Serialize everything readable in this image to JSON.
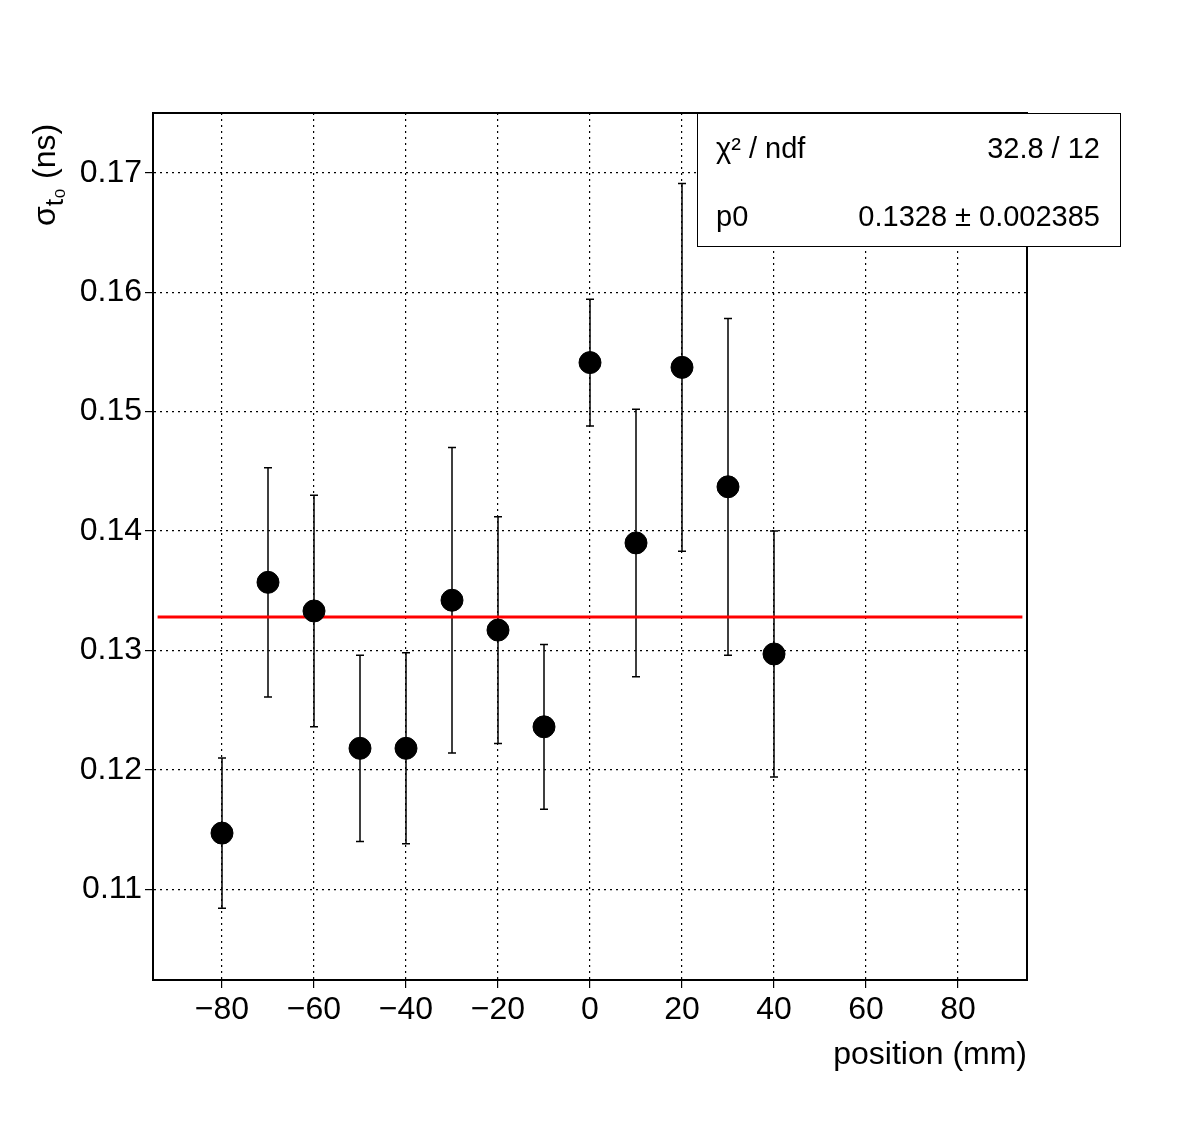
{
  "chart_data": {
    "type": "scatter",
    "xlabel": "position (mm)",
    "ylabel": "σ$_{t₀}$ (ns)",
    "xlim": [
      -95,
      95
    ],
    "xticks": [
      -80,
      -60,
      -40,
      -20,
      0,
      20,
      40,
      60,
      80
    ],
    "ylim": [
      0.1024,
      0.175
    ],
    "yticks": [
      0.11,
      0.12,
      0.13,
      0.14,
      0.15,
      0.16,
      0.17
    ],
    "grid": true,
    "legend": false,
    "marker": "circle",
    "annotations": [
      "χ² / ndf",
      "32.8 / 12",
      "p0",
      "0.1328 ± 0.002385"
    ],
    "series": [
      {
        "type": "scatter",
        "color": "#000000",
        "x": [
          -80,
          -70,
          -60,
          -50,
          -40,
          -30,
          -20,
          -10,
          0,
          10,
          20,
          30,
          40
        ],
        "values": [
          0.1147,
          0.1357,
          0.1333,
          0.1218,
          0.1218,
          0.1342,
          0.1317,
          0.1236,
          0.1541,
          0.139,
          0.1537,
          0.1437,
          0.1297
        ],
        "errors": [
          0.0063,
          0.0096,
          0.0097,
          0.0078,
          0.008,
          0.0128,
          0.0095,
          0.0069,
          0.0053,
          0.0112,
          0.0154,
          0.0141,
          0.0103
        ]
      },
      {
        "type": "line",
        "color": "#ff0000",
        "line_style": "solid",
        "marker": "none",
        "x": [
          -94,
          94
        ],
        "values": [
          0.1328,
          0.1328
        ]
      }
    ]
  }
}
